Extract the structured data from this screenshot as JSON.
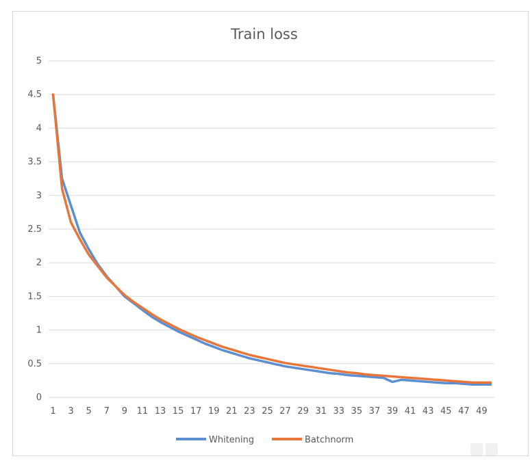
{
  "chart_data": {
    "type": "line",
    "title": "Train loss",
    "xlabel": "",
    "ylabel": "",
    "x": [
      1,
      2,
      3,
      4,
      5,
      6,
      7,
      8,
      9,
      10,
      11,
      12,
      13,
      14,
      15,
      16,
      17,
      18,
      19,
      20,
      21,
      22,
      23,
      24,
      25,
      26,
      27,
      28,
      29,
      30,
      31,
      32,
      33,
      34,
      35,
      36,
      37,
      38,
      39,
      40,
      41,
      42,
      43,
      44,
      45,
      46,
      47,
      48,
      49,
      50
    ],
    "x_tick_labels": [
      "1",
      "3",
      "5",
      "7",
      "9",
      "11",
      "13",
      "15",
      "17",
      "19",
      "21",
      "23",
      "25",
      "27",
      "29",
      "31",
      "33",
      "35",
      "37",
      "39",
      "41",
      "43",
      "45",
      "47",
      "49"
    ],
    "y_tick_labels": [
      "0",
      "0.5",
      "1",
      "1.5",
      "2",
      "2.5",
      "3",
      "3.5",
      "4",
      "4.5",
      "5"
    ],
    "ylim": [
      0,
      5
    ],
    "grid": "horizontal",
    "legend_position": "bottom",
    "series": [
      {
        "name": "Whitening",
        "color": "#5b8fd1",
        "values": [
          4.5,
          3.25,
          2.85,
          2.45,
          2.2,
          1.98,
          1.8,
          1.65,
          1.5,
          1.4,
          1.3,
          1.2,
          1.12,
          1.05,
          0.98,
          0.92,
          0.86,
          0.8,
          0.75,
          0.7,
          0.66,
          0.62,
          0.58,
          0.55,
          0.52,
          0.49,
          0.46,
          0.44,
          0.42,
          0.4,
          0.38,
          0.36,
          0.35,
          0.33,
          0.32,
          0.31,
          0.3,
          0.29,
          0.23,
          0.26,
          0.25,
          0.24,
          0.23,
          0.22,
          0.21,
          0.21,
          0.2,
          0.19,
          0.19,
          0.19
        ]
      },
      {
        "name": "Batchnorm",
        "color": "#e8763a",
        "values": [
          4.5,
          3.1,
          2.6,
          2.35,
          2.12,
          1.95,
          1.78,
          1.65,
          1.52,
          1.42,
          1.33,
          1.24,
          1.16,
          1.09,
          1.02,
          0.96,
          0.9,
          0.85,
          0.8,
          0.75,
          0.71,
          0.67,
          0.63,
          0.6,
          0.57,
          0.54,
          0.51,
          0.49,
          0.47,
          0.45,
          0.43,
          0.41,
          0.39,
          0.37,
          0.36,
          0.34,
          0.33,
          0.32,
          0.31,
          0.3,
          0.29,
          0.28,
          0.27,
          0.26,
          0.25,
          0.24,
          0.23,
          0.22,
          0.22,
          0.22
        ]
      }
    ]
  }
}
